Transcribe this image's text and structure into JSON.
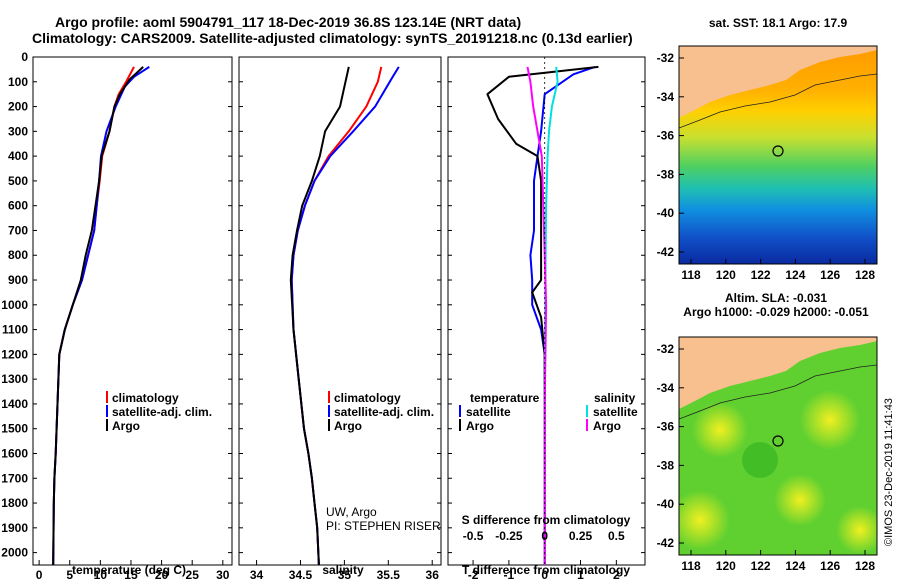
{
  "header": {
    "title_line1": "Argo profile: aoml 5904791_117 18-Dec-2019 36.8S 123.14E (NRT data)",
    "title_line2": "Climatology: CARS2009. Satellite-adjusted climatology: synTS_20191218.nc (0.13d earlier)"
  },
  "colors": {
    "climatology": "#ff0000",
    "satellite": "#0000ff",
    "argo": "#000000",
    "argo_salinity": "#ff00ff",
    "satellite_salinity": "#00e0e0",
    "land": "#f7c08e"
  },
  "depth_ticks": [
    "0",
    "100",
    "200",
    "300",
    "400",
    "500",
    "600",
    "700",
    "800",
    "900",
    "1000",
    "1100",
    "1200",
    "1300",
    "1400",
    "1500",
    "1600",
    "1700",
    "1800",
    "1900",
    "2000"
  ],
  "panels": {
    "temperature": {
      "xlabel": "temperature (deg C)",
      "ticks": [
        "0",
        "5",
        "10",
        "15",
        "20",
        "25",
        "30"
      ],
      "legend": [
        "climatology",
        "satellite-adj. clim.",
        "Argo"
      ]
    },
    "salinity": {
      "xlabel": "salinity",
      "ticks": [
        "34",
        "34.5",
        "35",
        "35.5",
        "36"
      ],
      "legend": [
        "climatology",
        "satellite-adj. clim.",
        "Argo"
      ],
      "credit1": "UW, Argo",
      "credit2": "PI: STEPHEN RISER"
    },
    "difference": {
      "xlabel": "T difference from climatology",
      "ticks": [
        "-2",
        "-1",
        "0",
        "1",
        "2"
      ],
      "s_title": "S difference from climatology",
      "s_ticks": [
        "-0.5",
        "-0.25",
        "0",
        "0.25",
        "0.5"
      ],
      "legend_t_head": "temperature",
      "legend_s_head": "salinity",
      "legend_t": [
        "satellite",
        "Argo"
      ],
      "legend_s": [
        "satellite",
        "Argo"
      ]
    }
  },
  "maps": {
    "sst_title": "sat. SST: 18.1 Argo: 17.9",
    "sla_title1": "Altim. SLA: -0.031",
    "sla_title2": "Argo h1000: -0.029 h2000: -0.051",
    "lat_ticks": [
      "-32",
      "-34",
      "-36",
      "-38",
      "-40",
      "-42"
    ],
    "lon_ticks": [
      "118",
      "120",
      "122",
      "124",
      "126",
      "128"
    ],
    "stamp": "©IMOS 23-Dec-2019 11:41:43"
  },
  "chart_data": [
    {
      "type": "line",
      "name": "temperature",
      "xlabel": "temperature (deg C)",
      "xlim": [
        -1,
        31.5
      ],
      "ylim": [
        2050,
        0
      ],
      "series": [
        {
          "name": "climatology",
          "x": [
            15.5,
            14.2,
            13.0,
            12.3,
            11.5,
            10.3,
            9.9,
            9.4,
            9.0,
            8.0,
            7.0,
            5.5,
            4.2,
            3.3,
            3.0,
            2.7,
            2.5,
            2.4,
            2.3
          ],
          "y": [
            40,
            100,
            150,
            200,
            300,
            400,
            500,
            600,
            700,
            800,
            900,
            1000,
            1100,
            1200,
            1400,
            1600,
            1700,
            1800,
            2050
          ]
        },
        {
          "name": "satellite-adj. clim.",
          "x": [
            18.0,
            15.5,
            14.0,
            12.5,
            11.0,
            10.1,
            9.8,
            9.4,
            9.0,
            8.0,
            7.0,
            5.5,
            4.2,
            3.3,
            3.0,
            2.7,
            2.5,
            2.4,
            2.3
          ],
          "y": [
            40,
            80,
            120,
            200,
            300,
            400,
            500,
            600,
            700,
            800,
            900,
            1000,
            1100,
            1200,
            1400,
            1600,
            1700,
            1800,
            2050
          ]
        },
        {
          "name": "Argo",
          "x": [
            17.0,
            14.8,
            13.2,
            12.3,
            11.5,
            10.2,
            9.8,
            9.2,
            8.6,
            7.6,
            6.8,
            5.5,
            4.2,
            3.3,
            3.0,
            2.7,
            2.5,
            2.4,
            2.3
          ],
          "y": [
            40,
            90,
            150,
            200,
            300,
            400,
            500,
            600,
            700,
            800,
            900,
            1000,
            1100,
            1200,
            1400,
            1600,
            1700,
            1800,
            2050
          ]
        }
      ]
    },
    {
      "type": "line",
      "name": "salinity",
      "xlabel": "salinity",
      "xlim": [
        33.8,
        36.1
      ],
      "ylim": [
        2050,
        0
      ],
      "series": [
        {
          "name": "climatology",
          "x": [
            35.42,
            35.38,
            35.25,
            35.05,
            34.82,
            34.66,
            34.55,
            34.47,
            34.42,
            34.4,
            34.42,
            34.48,
            34.54,
            34.59,
            34.63,
            34.66,
            34.69,
            34.71
          ],
          "y": [
            40,
            100,
            200,
            300,
            400,
            500,
            600,
            700,
            800,
            900,
            1100,
            1300,
            1500,
            1600,
            1700,
            1800,
            1900,
            2050
          ]
        },
        {
          "name": "satellite-adj. clim.",
          "x": [
            35.62,
            35.55,
            35.35,
            35.1,
            34.84,
            34.66,
            34.55,
            34.47,
            34.42,
            34.4,
            34.42,
            34.48,
            34.54,
            34.59,
            34.63,
            34.66,
            34.69,
            34.71
          ],
          "y": [
            40,
            80,
            200,
            300,
            400,
            500,
            600,
            700,
            800,
            900,
            1100,
            1300,
            1500,
            1600,
            1700,
            1800,
            1900,
            2050
          ]
        },
        {
          "name": "Argo",
          "x": [
            35.05,
            35.0,
            34.95,
            34.78,
            34.72,
            34.63,
            34.52,
            34.46,
            34.41,
            34.39,
            34.42,
            34.48,
            34.54,
            34.59,
            34.63,
            34.66,
            34.69,
            34.71
          ],
          "y": [
            40,
            120,
            200,
            300,
            400,
            500,
            600,
            700,
            800,
            900,
            1100,
            1300,
            1500,
            1600,
            1700,
            1800,
            1900,
            2050
          ]
        }
      ]
    },
    {
      "type": "line",
      "name": "difference",
      "xlabel": "T difference from climatology",
      "xlim": [
        -2.7,
        2.8
      ],
      "s_xlim": [
        -0.675,
        0.7
      ],
      "ylim": [
        2050,
        0
      ],
      "series": [
        {
          "name": "temperature satellite",
          "axis": "T",
          "x": [
            1.4,
            0.8,
            0.0,
            -0.1,
            -0.2,
            -0.3,
            -0.3,
            -0.3,
            -0.4,
            -0.35,
            -0.35,
            -0.1,
            0.0,
            0.0,
            0.0
          ],
          "y": [
            40,
            70,
            150,
            300,
            400,
            500,
            600,
            700,
            800,
            900,
            1000,
            1100,
            1200,
            1600,
            2050
          ]
        },
        {
          "name": "temperature Argo",
          "axis": "T",
          "x": [
            1.5,
            -1.0,
            -1.6,
            -1.3,
            -0.8,
            -0.2,
            -0.1,
            -0.1,
            -0.1,
            -0.35,
            -0.1,
            0.0,
            0.0,
            0.0
          ],
          "y": [
            40,
            80,
            150,
            250,
            350,
            400,
            500,
            700,
            900,
            950,
            1050,
            1200,
            1600,
            2050
          ]
        },
        {
          "name": "salinity satellite",
          "axis": "S",
          "x": [
            0.08,
            0.09,
            0.05,
            0.03,
            0.02,
            0.01,
            0.005,
            0.0,
            0.0
          ],
          "y": [
            40,
            100,
            200,
            300,
            400,
            600,
            900,
            1400,
            2050
          ]
        },
        {
          "name": "salinity Argo",
          "axis": "S",
          "x": [
            -0.12,
            -0.1,
            -0.08,
            -0.05,
            -0.02,
            -0.01,
            0.0,
            0.01,
            0.0,
            0.0
          ],
          "y": [
            40,
            100,
            200,
            300,
            400,
            600,
            800,
            1000,
            1400,
            2050
          ]
        }
      ]
    }
  ]
}
